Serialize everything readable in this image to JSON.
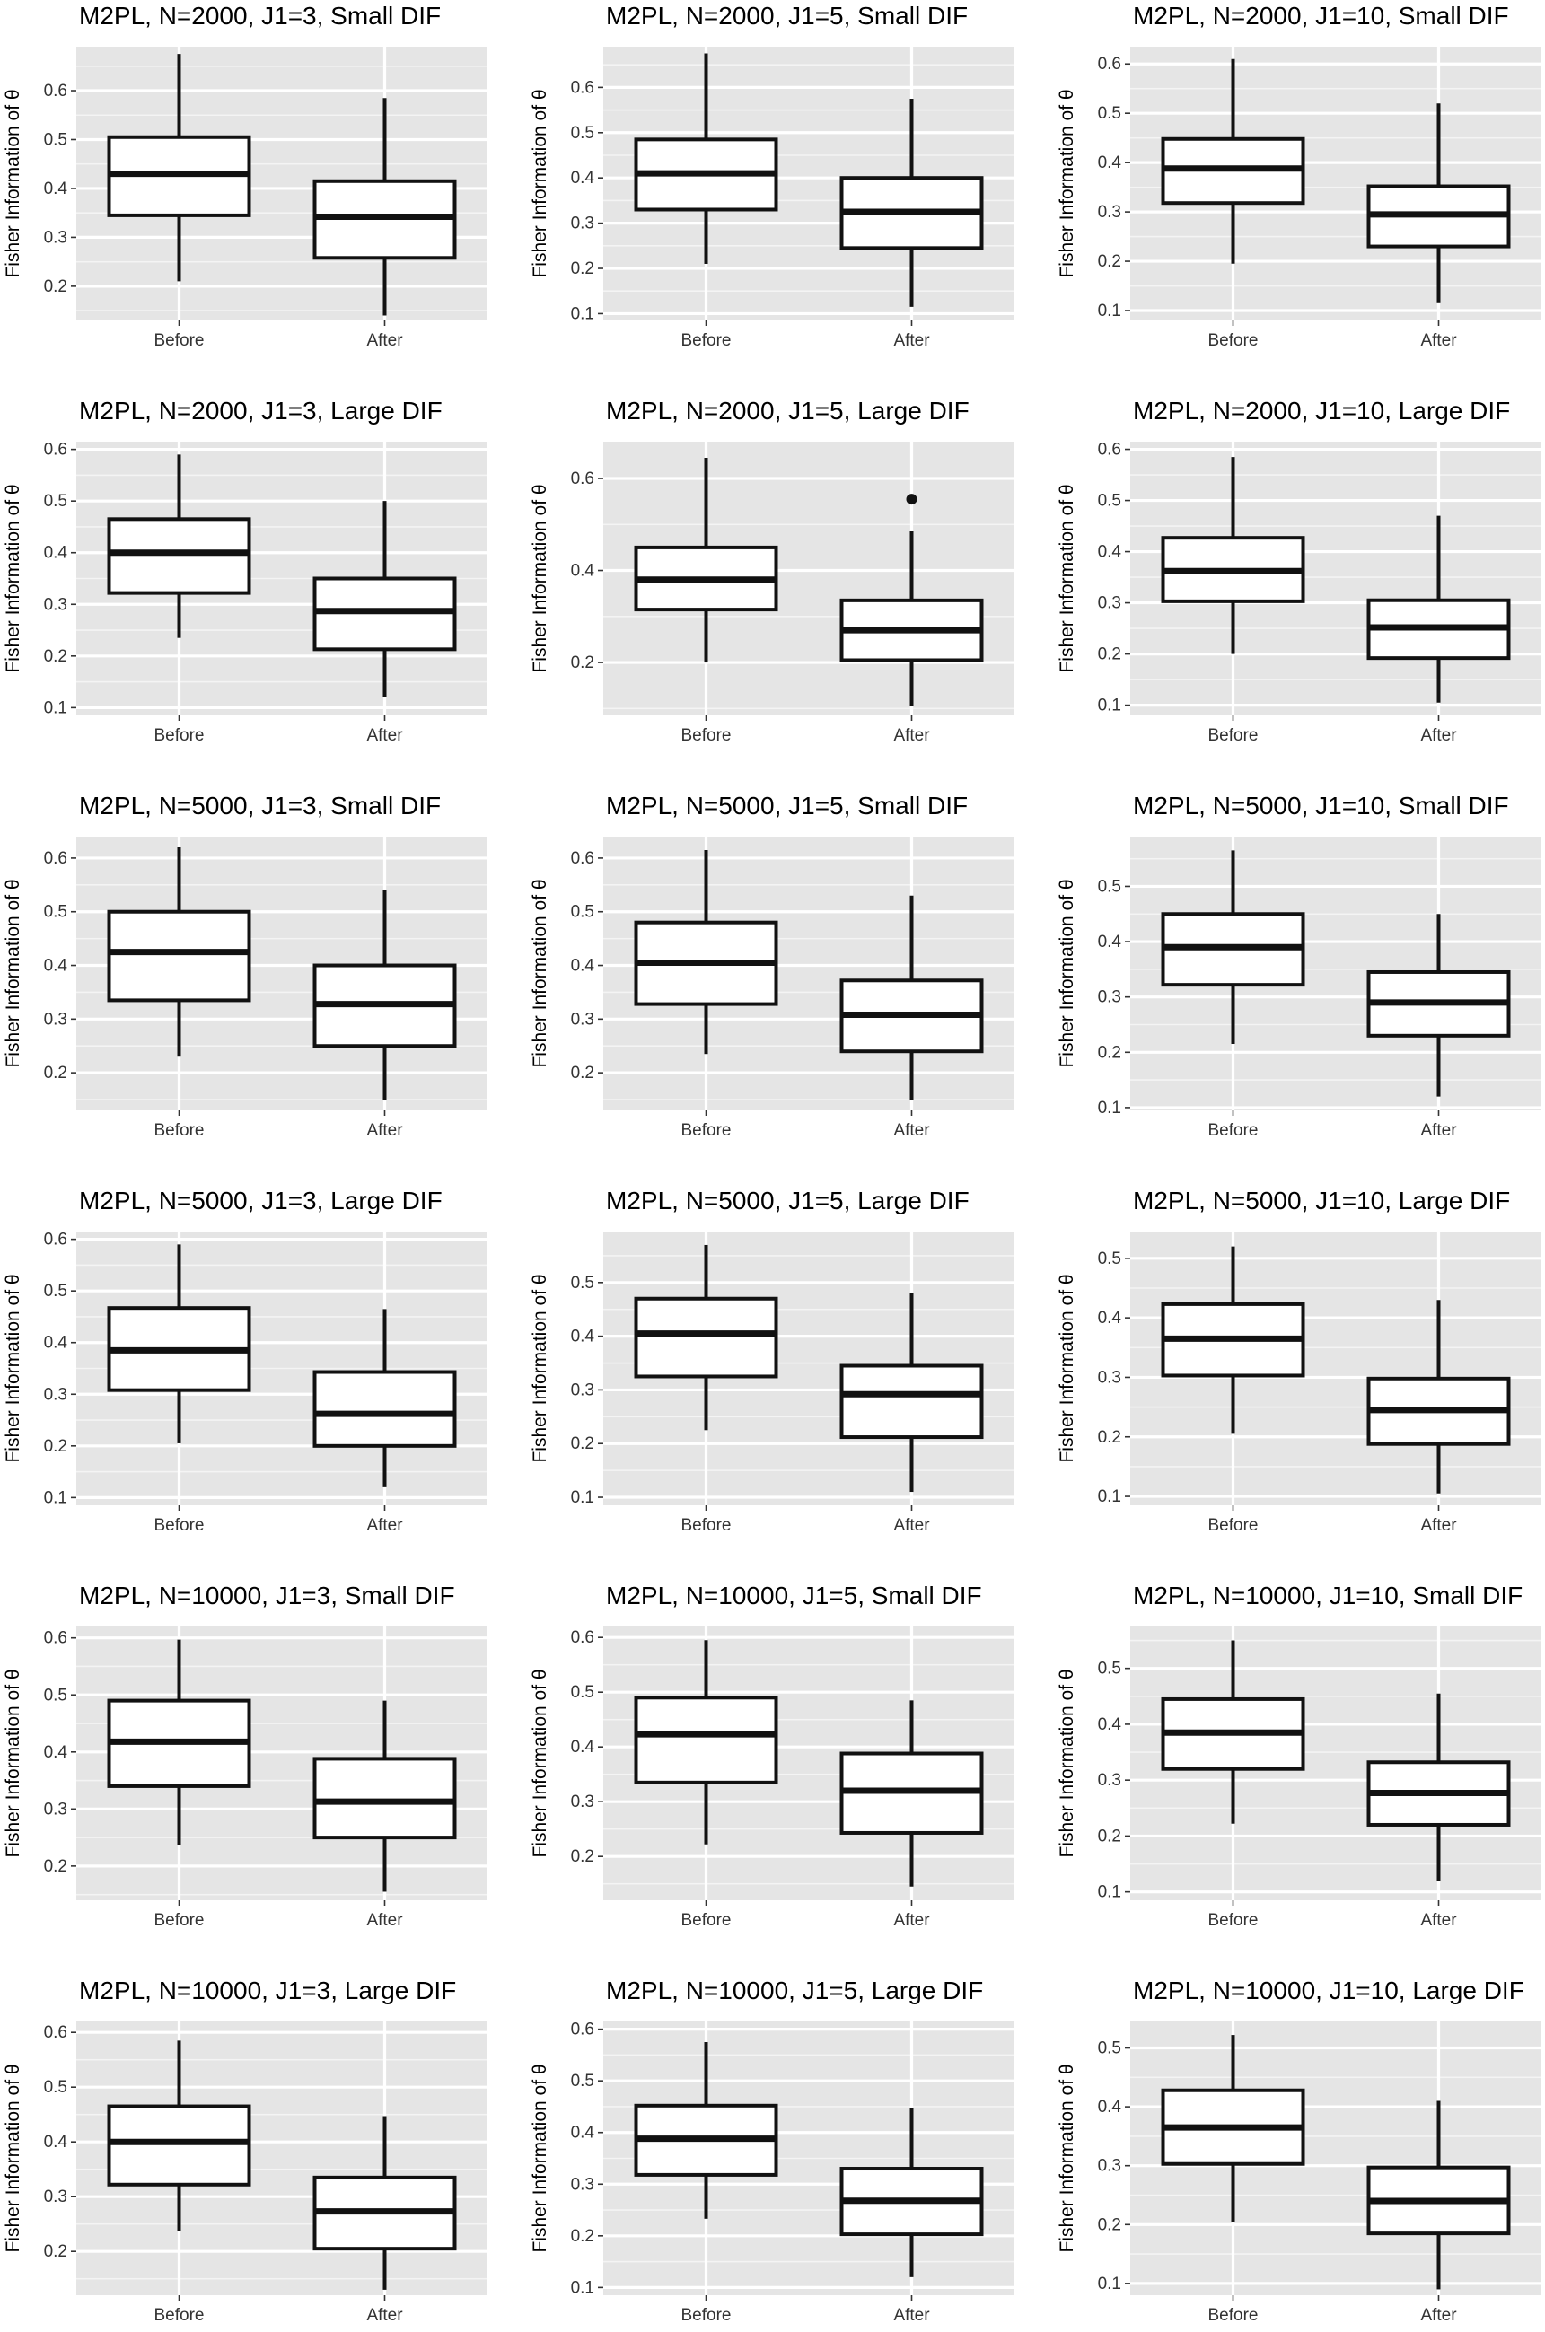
{
  "chart_data": [
    {
      "type": "boxplot",
      "title": "M2PL, N=2000, J1=3, Small DIF",
      "ylabel": "Fisher Information of θ",
      "categories": [
        "Before",
        "After"
      ],
      "ylim": [
        0.13,
        0.69
      ],
      "yticks": [
        0.2,
        0.3,
        0.4,
        0.5,
        0.6
      ],
      "boxes": [
        {
          "name": "Before",
          "min": 0.21,
          "q1": 0.345,
          "median": 0.43,
          "q3": 0.505,
          "max": 0.675,
          "outliers": []
        },
        {
          "name": "After",
          "min": 0.14,
          "q1": 0.258,
          "median": 0.342,
          "q3": 0.415,
          "max": 0.585,
          "outliers": []
        }
      ]
    },
    {
      "type": "boxplot",
      "title": "M2PL, N=2000, J1=5, Small DIF",
      "ylabel": "Fisher Information of θ",
      "categories": [
        "Before",
        "After"
      ],
      "ylim": [
        0.085,
        0.69
      ],
      "yticks": [
        0.1,
        0.2,
        0.3,
        0.4,
        0.5,
        0.6
      ],
      "boxes": [
        {
          "name": "Before",
          "min": 0.21,
          "q1": 0.33,
          "median": 0.41,
          "q3": 0.485,
          "max": 0.675,
          "outliers": []
        },
        {
          "name": "After",
          "min": 0.115,
          "q1": 0.245,
          "median": 0.325,
          "q3": 0.4,
          "max": 0.575,
          "outliers": []
        }
      ]
    },
    {
      "type": "boxplot",
      "title": "M2PL, N=2000, J1=10, Small DIF",
      "ylabel": "Fisher Information of θ",
      "categories": [
        "Before",
        "After"
      ],
      "ylim": [
        0.08,
        0.635
      ],
      "yticks": [
        0.1,
        0.2,
        0.3,
        0.4,
        0.5,
        0.6
      ],
      "boxes": [
        {
          "name": "Before",
          "min": 0.195,
          "q1": 0.318,
          "median": 0.388,
          "q3": 0.448,
          "max": 0.61,
          "outliers": []
        },
        {
          "name": "After",
          "min": 0.115,
          "q1": 0.23,
          "median": 0.295,
          "q3": 0.352,
          "max": 0.52,
          "outliers": []
        }
      ]
    },
    {
      "type": "boxplot",
      "title": "M2PL, N=2000, J1=3, Large DIF",
      "ylabel": "Fisher Information of θ",
      "categories": [
        "Before",
        "After"
      ],
      "ylim": [
        0.085,
        0.615
      ],
      "yticks": [
        0.1,
        0.2,
        0.3,
        0.4,
        0.5,
        0.6
      ],
      "boxes": [
        {
          "name": "Before",
          "min": 0.235,
          "q1": 0.322,
          "median": 0.4,
          "q3": 0.465,
          "max": 0.59,
          "outliers": []
        },
        {
          "name": "After",
          "min": 0.12,
          "q1": 0.213,
          "median": 0.287,
          "q3": 0.35,
          "max": 0.5,
          "outliers": []
        }
      ]
    },
    {
      "type": "boxplot",
      "title": "M2PL, N=2000, J1=5, Large DIF",
      "ylabel": "Fisher Information of θ",
      "categories": [
        "Before",
        "After"
      ],
      "ylim": [
        0.085,
        0.68
      ],
      "yticks": [
        0.2,
        0.4,
        0.6
      ],
      "boxes": [
        {
          "name": "Before",
          "min": 0.2,
          "q1": 0.315,
          "median": 0.38,
          "q3": 0.45,
          "max": 0.645,
          "outliers": []
        },
        {
          "name": "After",
          "min": 0.105,
          "q1": 0.205,
          "median": 0.27,
          "q3": 0.335,
          "max": 0.485,
          "outliers": [
            0.555
          ]
        }
      ]
    },
    {
      "type": "boxplot",
      "title": "M2PL, N=2000, J1=10, Large DIF",
      "ylabel": "Fisher Information of θ",
      "categories": [
        "Before",
        "After"
      ],
      "ylim": [
        0.08,
        0.615
      ],
      "yticks": [
        0.1,
        0.2,
        0.3,
        0.4,
        0.5,
        0.6
      ],
      "boxes": [
        {
          "name": "Before",
          "min": 0.2,
          "q1": 0.303,
          "median": 0.362,
          "q3": 0.427,
          "max": 0.585,
          "outliers": []
        },
        {
          "name": "After",
          "min": 0.105,
          "q1": 0.192,
          "median": 0.252,
          "q3": 0.305,
          "max": 0.47,
          "outliers": []
        }
      ]
    },
    {
      "type": "boxplot",
      "title": "M2PL, N=5000, J1=3, Small DIF",
      "ylabel": "Fisher Information of θ",
      "categories": [
        "Before",
        "After"
      ],
      "ylim": [
        0.13,
        0.64
      ],
      "yticks": [
        0.2,
        0.3,
        0.4,
        0.5,
        0.6
      ],
      "boxes": [
        {
          "name": "Before",
          "min": 0.23,
          "q1": 0.335,
          "median": 0.425,
          "q3": 0.5,
          "max": 0.62,
          "outliers": []
        },
        {
          "name": "After",
          "min": 0.15,
          "q1": 0.25,
          "median": 0.328,
          "q3": 0.4,
          "max": 0.54,
          "outliers": []
        }
      ]
    },
    {
      "type": "boxplot",
      "title": "M2PL, N=5000, J1=5, Small DIF",
      "ylabel": "Fisher Information of θ",
      "categories": [
        "Before",
        "After"
      ],
      "ylim": [
        0.13,
        0.64
      ],
      "yticks": [
        0.2,
        0.3,
        0.4,
        0.5,
        0.6
      ],
      "boxes": [
        {
          "name": "Before",
          "min": 0.235,
          "q1": 0.328,
          "median": 0.405,
          "q3": 0.48,
          "max": 0.615,
          "outliers": []
        },
        {
          "name": "After",
          "min": 0.15,
          "q1": 0.24,
          "median": 0.308,
          "q3": 0.372,
          "max": 0.53,
          "outliers": []
        }
      ]
    },
    {
      "type": "boxplot",
      "title": "M2PL, N=5000, J1=10, Small DIF",
      "ylabel": "Fisher Information of θ",
      "categories": [
        "Before",
        "After"
      ],
      "ylim": [
        0.095,
        0.59
      ],
      "yticks": [
        0.1,
        0.2,
        0.3,
        0.4,
        0.5
      ],
      "boxes": [
        {
          "name": "Before",
          "min": 0.215,
          "q1": 0.322,
          "median": 0.39,
          "q3": 0.45,
          "max": 0.565,
          "outliers": []
        },
        {
          "name": "After",
          "min": 0.12,
          "q1": 0.23,
          "median": 0.29,
          "q3": 0.345,
          "max": 0.45,
          "outliers": []
        }
      ]
    },
    {
      "type": "boxplot",
      "title": "M2PL, N=5000, J1=3, Large DIF",
      "ylabel": "Fisher Information of θ",
      "categories": [
        "Before",
        "After"
      ],
      "ylim": [
        0.085,
        0.615
      ],
      "yticks": [
        0.1,
        0.2,
        0.3,
        0.4,
        0.5,
        0.6
      ],
      "boxes": [
        {
          "name": "Before",
          "min": 0.205,
          "q1": 0.308,
          "median": 0.385,
          "q3": 0.467,
          "max": 0.59,
          "outliers": []
        },
        {
          "name": "After",
          "min": 0.12,
          "q1": 0.2,
          "median": 0.262,
          "q3": 0.343,
          "max": 0.465,
          "outliers": []
        }
      ]
    },
    {
      "type": "boxplot",
      "title": "M2PL, N=5000, J1=5, Large DIF",
      "ylabel": "Fisher Information of θ",
      "categories": [
        "Before",
        "After"
      ],
      "ylim": [
        0.085,
        0.595
      ],
      "yticks": [
        0.1,
        0.2,
        0.3,
        0.4,
        0.5
      ],
      "boxes": [
        {
          "name": "Before",
          "min": 0.225,
          "q1": 0.325,
          "median": 0.405,
          "q3": 0.47,
          "max": 0.57,
          "outliers": []
        },
        {
          "name": "After",
          "min": 0.11,
          "q1": 0.212,
          "median": 0.292,
          "q3": 0.345,
          "max": 0.48,
          "outliers": []
        }
      ]
    },
    {
      "type": "boxplot",
      "title": "M2PL, N=5000, J1=10, Large DIF",
      "ylabel": "Fisher Information of θ",
      "categories": [
        "Before",
        "After"
      ],
      "ylim": [
        0.085,
        0.545
      ],
      "yticks": [
        0.1,
        0.2,
        0.3,
        0.4,
        0.5
      ],
      "boxes": [
        {
          "name": "Before",
          "min": 0.205,
          "q1": 0.303,
          "median": 0.365,
          "q3": 0.423,
          "max": 0.52,
          "outliers": []
        },
        {
          "name": "After",
          "min": 0.105,
          "q1": 0.188,
          "median": 0.245,
          "q3": 0.298,
          "max": 0.43,
          "outliers": []
        }
      ]
    },
    {
      "type": "boxplot",
      "title": "M2PL, N=10000, J1=3, Small DIF",
      "ylabel": "Fisher Information of θ",
      "categories": [
        "Before",
        "After"
      ],
      "ylim": [
        0.14,
        0.62
      ],
      "yticks": [
        0.2,
        0.3,
        0.4,
        0.5,
        0.6
      ],
      "boxes": [
        {
          "name": "Before",
          "min": 0.237,
          "q1": 0.34,
          "median": 0.418,
          "q3": 0.49,
          "max": 0.597,
          "outliers": []
        },
        {
          "name": "After",
          "min": 0.155,
          "q1": 0.25,
          "median": 0.313,
          "q3": 0.388,
          "max": 0.49,
          "outliers": []
        }
      ]
    },
    {
      "type": "boxplot",
      "title": "M2PL, N=10000, J1=5, Small DIF",
      "ylabel": "Fisher Information of θ",
      "categories": [
        "Before",
        "After"
      ],
      "ylim": [
        0.12,
        0.62
      ],
      "yticks": [
        0.2,
        0.3,
        0.4,
        0.5,
        0.6
      ],
      "boxes": [
        {
          "name": "Before",
          "min": 0.222,
          "q1": 0.335,
          "median": 0.423,
          "q3": 0.49,
          "max": 0.595,
          "outliers": []
        },
        {
          "name": "After",
          "min": 0.145,
          "q1": 0.243,
          "median": 0.32,
          "q3": 0.388,
          "max": 0.485,
          "outliers": []
        }
      ]
    },
    {
      "type": "boxplot",
      "title": "M2PL, N=10000, J1=10, Small DIF",
      "ylabel": "Fisher Information of θ",
      "categories": [
        "Before",
        "After"
      ],
      "ylim": [
        0.085,
        0.575
      ],
      "yticks": [
        0.1,
        0.2,
        0.3,
        0.4,
        0.5
      ],
      "boxes": [
        {
          "name": "Before",
          "min": 0.222,
          "q1": 0.32,
          "median": 0.385,
          "q3": 0.445,
          "max": 0.55,
          "outliers": []
        },
        {
          "name": "After",
          "min": 0.12,
          "q1": 0.22,
          "median": 0.277,
          "q3": 0.332,
          "max": 0.455,
          "outliers": []
        }
      ]
    },
    {
      "type": "boxplot",
      "title": "M2PL, N=10000, J1=3, Large DIF",
      "ylabel": "Fisher Information of θ",
      "categories": [
        "Before",
        "After"
      ],
      "ylim": [
        0.12,
        0.62
      ],
      "yticks": [
        0.2,
        0.3,
        0.4,
        0.5,
        0.6
      ],
      "boxes": [
        {
          "name": "Before",
          "min": 0.237,
          "q1": 0.322,
          "median": 0.4,
          "q3": 0.465,
          "max": 0.585,
          "outliers": []
        },
        {
          "name": "After",
          "min": 0.13,
          "q1": 0.205,
          "median": 0.273,
          "q3": 0.335,
          "max": 0.447,
          "outliers": []
        }
      ]
    },
    {
      "type": "boxplot",
      "title": "M2PL, N=10000, J1=5, Large DIF",
      "ylabel": "Fisher Information of θ",
      "categories": [
        "Before",
        "After"
      ],
      "ylim": [
        0.085,
        0.615
      ],
      "yticks": [
        0.1,
        0.2,
        0.3,
        0.4,
        0.5,
        0.6
      ],
      "boxes": [
        {
          "name": "Before",
          "min": 0.233,
          "q1": 0.318,
          "median": 0.388,
          "q3": 0.452,
          "max": 0.575,
          "outliers": []
        },
        {
          "name": "After",
          "min": 0.12,
          "q1": 0.203,
          "median": 0.268,
          "q3": 0.33,
          "max": 0.447,
          "outliers": []
        }
      ]
    },
    {
      "type": "boxplot",
      "title": "M2PL, N=10000, J1=10, Large DIF",
      "ylabel": "Fisher Information of θ",
      "categories": [
        "Before",
        "After"
      ],
      "ylim": [
        0.08,
        0.545
      ],
      "yticks": [
        0.1,
        0.2,
        0.3,
        0.4,
        0.5
      ],
      "boxes": [
        {
          "name": "Before",
          "min": 0.205,
          "q1": 0.303,
          "median": 0.365,
          "q3": 0.428,
          "max": 0.522,
          "outliers": []
        },
        {
          "name": "After",
          "min": 0.09,
          "q1": 0.185,
          "median": 0.24,
          "q3": 0.297,
          "max": 0.41,
          "outliers": []
        }
      ]
    }
  ]
}
